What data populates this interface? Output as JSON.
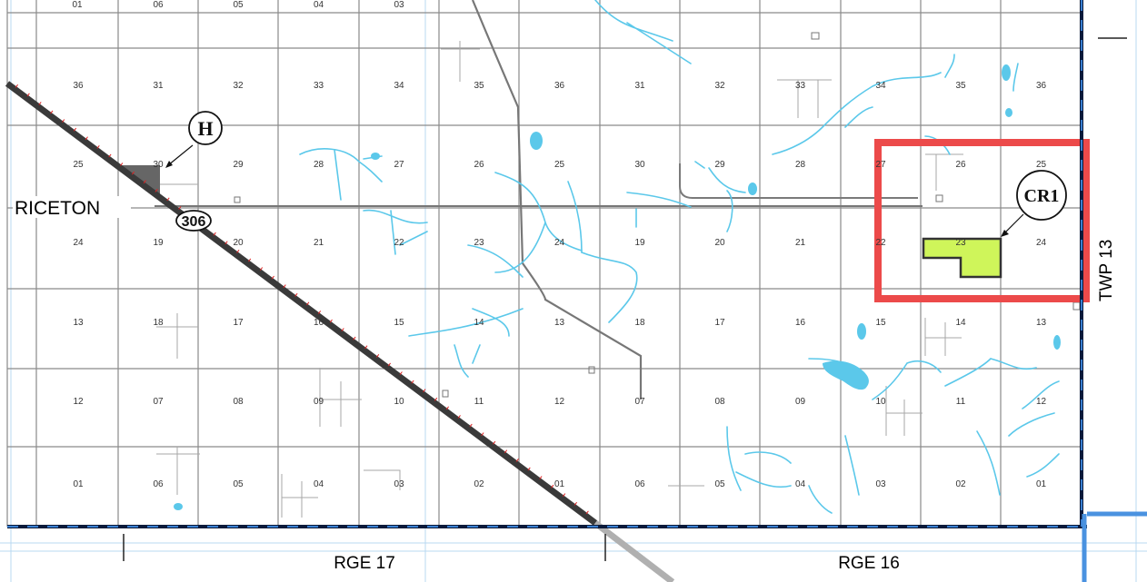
{
  "town_label": "RICETON",
  "highway_label": "306",
  "range_labels": [
    "RGE 17",
    "RGE 16"
  ],
  "township_label": "TWP 13",
  "markers": {
    "h": "H",
    "cr1": "CR1"
  },
  "section_rows": [
    [
      "36",
      "31",
      "32",
      "33",
      "34",
      "35",
      "36",
      "31",
      "32",
      "33",
      "34",
      "35",
      "36"
    ],
    [
      "25",
      "30",
      "29",
      "28",
      "27",
      "26",
      "25",
      "30",
      "29",
      "28",
      "27",
      "26",
      "25"
    ],
    [
      "24",
      "19",
      "20",
      "21",
      "22",
      "23",
      "24",
      "19",
      "20",
      "21",
      "22",
      "23",
      "24"
    ],
    [
      "13",
      "18",
      "17",
      "16",
      "15",
      "14",
      "13",
      "18",
      "17",
      "16",
      "15",
      "14",
      "13"
    ],
    [
      "12",
      "07",
      "08",
      "09",
      "10",
      "11",
      "12",
      "07",
      "08",
      "09",
      "10",
      "11",
      "12"
    ],
    [
      "01",
      "06",
      "05",
      "04",
      "03",
      "02",
      "01",
      "06",
      "05",
      "04",
      "03",
      "02",
      "01"
    ]
  ],
  "top_partial_labels": [
    "01",
    "06",
    "05",
    "04",
    "03"
  ],
  "colors": {
    "grid": "#8a8a8a",
    "water": "#5bc8ea",
    "railway": "#3a3a3a",
    "rail_ticks": "#d22",
    "boundary": "#0a1a3a",
    "boundary_dash": "#3a7fd0",
    "highlight_box": "#ec4a4a",
    "parcel_fill": "#cff55a",
    "town_fill": "#666666"
  }
}
